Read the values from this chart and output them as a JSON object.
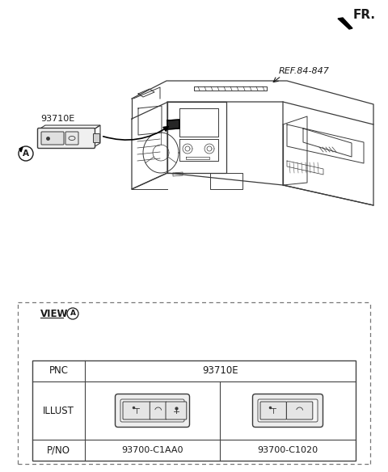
{
  "bg_color": "#ffffff",
  "fr_label": "FR.",
  "ref_label": "REF.84-847",
  "part_label": "93710E",
  "circle_A_label": "A",
  "table": {
    "pnc_label": "PNC",
    "pnc_value": "93710E",
    "illust_label": "ILLUST",
    "pno_label": "P/NO",
    "pno_values": [
      "93700-C1AA0",
      "93700-C1020"
    ],
    "view_label": "VIEW",
    "view_circle": "A"
  },
  "dashed_border_color": "#777777",
  "table_border_color": "#444444",
  "line_color": "#3a3a3a",
  "text_color": "#1a1a1a"
}
